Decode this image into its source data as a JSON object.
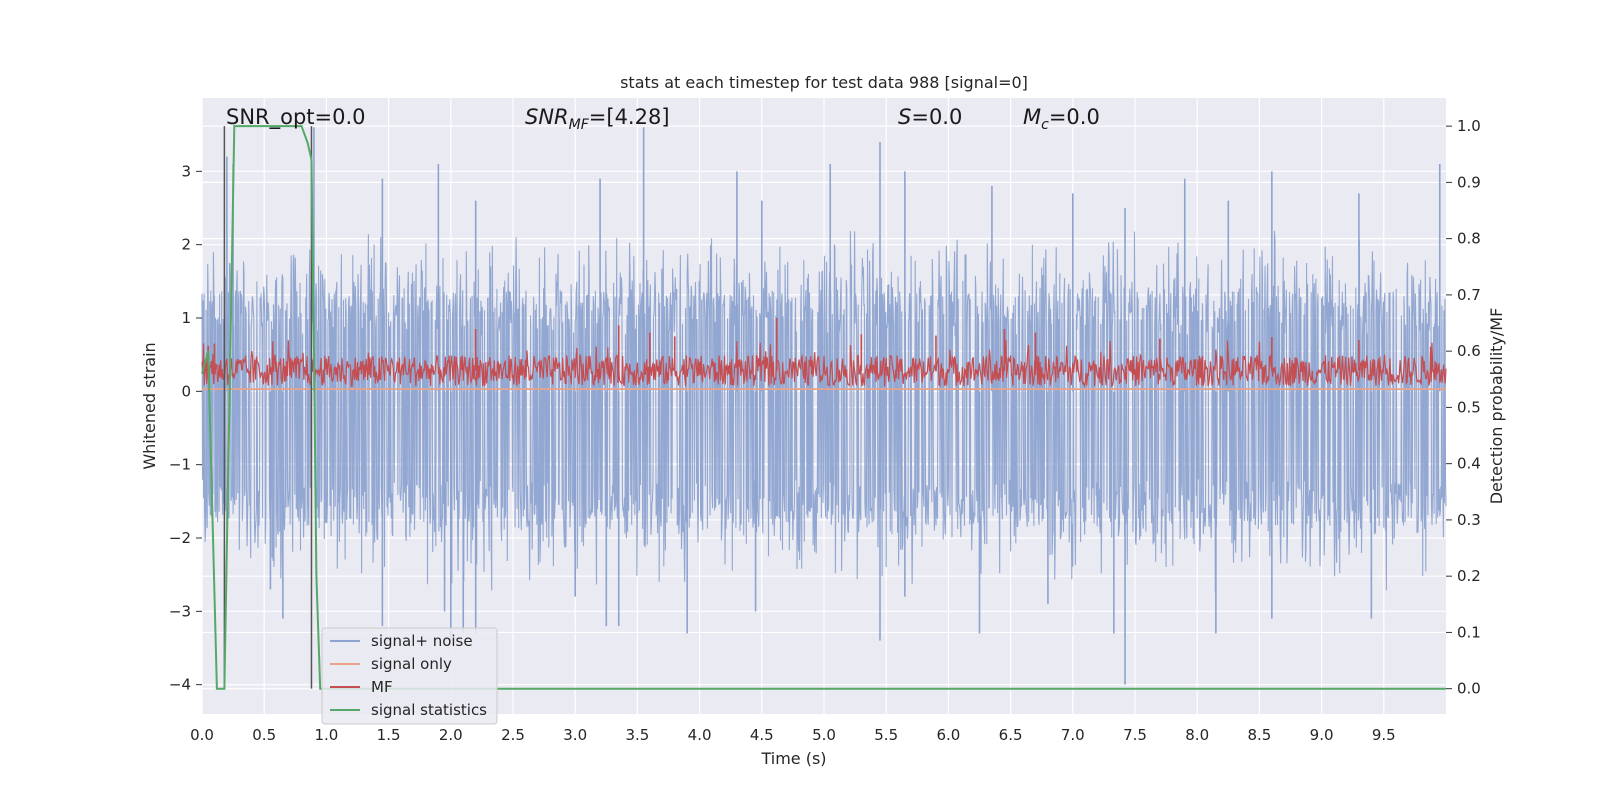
{
  "chart_data": {
    "type": "line",
    "title": "stats at each timestep for test data 988 [signal=0]",
    "xlabel": "Time (s)",
    "ylabel": "Whitened strain",
    "ylabel_right": "Detection probability/MF",
    "xlim": [
      0,
      10
    ],
    "ylim": [
      -4.4,
      4.0
    ],
    "ylim_right": [
      -0.045,
      1.05
    ],
    "x_ticks": [
      0.0,
      0.5,
      1.0,
      1.5,
      2.0,
      2.5,
      3.0,
      3.5,
      4.0,
      4.5,
      5.0,
      5.5,
      6.0,
      6.5,
      7.0,
      7.5,
      8.0,
      8.5,
      9.0,
      9.5
    ],
    "x_tick_labels": [
      "0.0",
      "0.5",
      "1.0",
      "1.5",
      "2.0",
      "2.5",
      "3.0",
      "3.5",
      "4.0",
      "4.5",
      "5.0",
      "5.5",
      "6.0",
      "6.5",
      "7.0",
      "7.5",
      "8.0",
      "8.5",
      "9.0",
      "9.5"
    ],
    "y_ticks": [
      -4,
      -3,
      -2,
      -1,
      0,
      1,
      2,
      3
    ],
    "y_tick_labels": [
      "−4",
      "−3",
      "−2",
      "−1",
      "0",
      "1",
      "2",
      "3"
    ],
    "y_right_ticks": [
      0.0,
      0.1,
      0.2,
      0.3,
      0.4,
      0.5,
      0.6,
      0.7,
      0.8,
      0.9,
      1.0
    ],
    "y_right_tick_labels": [
      "0.0",
      "0.1",
      "0.2",
      "0.3",
      "0.4",
      "0.5",
      "0.6",
      "0.7",
      "0.8",
      "0.9",
      "1.0"
    ],
    "grid": true,
    "legend_position": "lower-left",
    "annotations": {
      "snr_opt": "SNR_opt=0.0",
      "snr_mf_sym": "SNR",
      "snr_mf_sub": "MF",
      "snr_mf_val": "=[4.28]",
      "s_sym": "S",
      "s_val": "=0.0",
      "mc_sym": "M",
      "mc_sub": "c",
      "mc_val": "=0.0"
    },
    "series": [
      {
        "name": "signal+ noise",
        "color": "#8da3cf",
        "axis": "left",
        "kind": "noise",
        "envelope_t": [
          0,
          0.5,
          1,
          1.5,
          2,
          2.5,
          3,
          3.5,
          4,
          4.5,
          5,
          5.5,
          6,
          6.5,
          7,
          7.5,
          8,
          8.5,
          9,
          9.5,
          10
        ],
        "envelope_y": [
          1.3,
          1.3,
          1.3,
          1.3,
          1.3,
          1.3,
          1.3,
          1.3,
          1.3,
          1.3,
          1.3,
          1.3,
          1.3,
          1.3,
          1.3,
          1.3,
          1.3,
          1.3,
          1.3,
          1.3,
          1.3
        ],
        "peaks_t": [
          0.2,
          0.25,
          0.9,
          1.45,
          1.9,
          2.2,
          3.2,
          3.55,
          4.3,
          4.5,
          5.05,
          5.45,
          5.65,
          6.35,
          7.0,
          7.42,
          7.9,
          8.25,
          8.6,
          9.3,
          9.95
        ],
        "peaks_y": [
          3.2,
          3.1,
          3.6,
          2.9,
          3.1,
          2.6,
          2.9,
          3.6,
          3.0,
          2.6,
          3.1,
          3.4,
          3.0,
          2.8,
          2.7,
          2.5,
          2.9,
          2.6,
          3.0,
          2.7,
          3.1
        ],
        "troughs_t": [
          0.55,
          0.65,
          1.45,
          1.95,
          2.0,
          2.1,
          2.2,
          3.0,
          3.25,
          3.35,
          3.9,
          4.45,
          5.45,
          5.65,
          6.25,
          6.8,
          7.33,
          7.42,
          8.15,
          8.6,
          9.4
        ],
        "troughs_y": [
          -2.7,
          -3.1,
          -3.2,
          -3.0,
          -3.4,
          -3.3,
          -3.3,
          -2.8,
          -3.2,
          -3.2,
          -3.3,
          -3.0,
          -3.4,
          -2.8,
          -3.3,
          -2.9,
          -3.3,
          -4.0,
          -3.3,
          -3.1,
          -3.1
        ]
      },
      {
        "name": "signal only",
        "color": "#e8a388",
        "axis": "left",
        "kind": "flat",
        "x": [
          0,
          10
        ],
        "y": [
          0.03,
          0.03
        ]
      },
      {
        "name": "MF",
        "color": "#c44e52",
        "axis": "left",
        "kind": "band",
        "base": 0.28,
        "peaks_t": [
          0.05,
          0.1,
          2.2,
          3.35,
          3.6,
          3.8,
          4.62,
          5.3,
          5.9,
          6.45,
          6.7,
          7.7,
          8.6,
          9.3
        ],
        "peaks_y": [
          0.62,
          0.65,
          0.85,
          0.9,
          0.8,
          0.75,
          1.0,
          0.78,
          0.76,
          0.85,
          0.8,
          0.72,
          0.74,
          0.7
        ]
      },
      {
        "name": "signal statistics",
        "color": "#55a868",
        "axis": "right",
        "kind": "line",
        "x": [
          0.0,
          0.05,
          0.12,
          0.18,
          0.26,
          0.3,
          0.5,
          0.7,
          0.8,
          0.85,
          0.88,
          0.9,
          0.92,
          0.95,
          1.0,
          10.0
        ],
        "y": [
          0.56,
          0.6,
          0.0,
          0.0,
          1.0,
          1.0,
          1.0,
          1.0,
          1.0,
          0.97,
          0.94,
          0.6,
          0.2,
          0.0,
          0.0,
          0.0
        ]
      }
    ],
    "vertical_markers": [
      0.18,
      0.88
    ]
  }
}
